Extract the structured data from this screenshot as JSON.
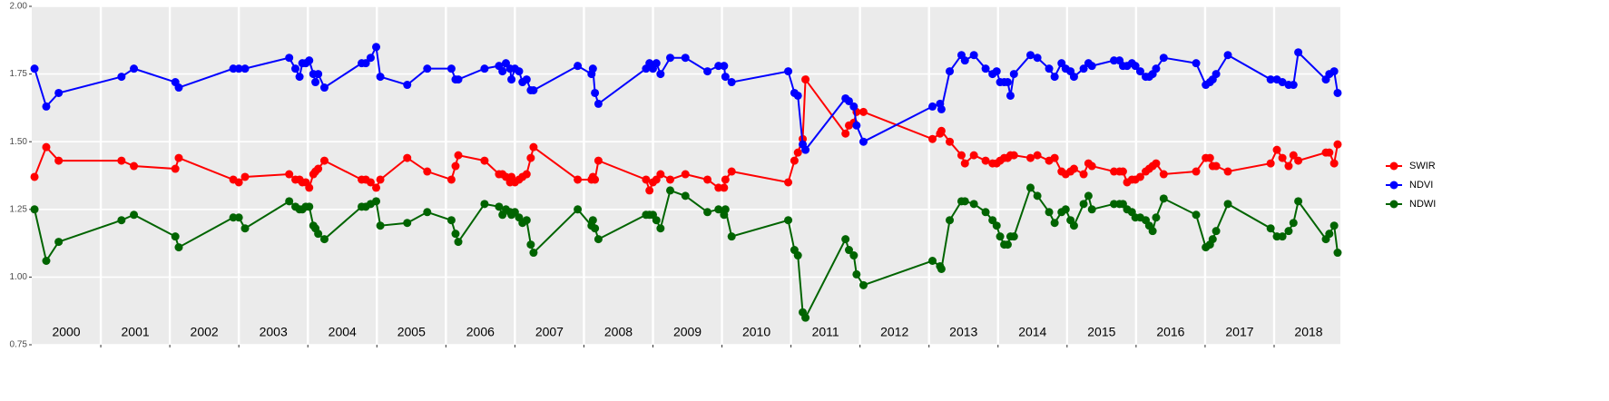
{
  "chart_data": {
    "type": "line",
    "x": [
      2000.04,
      2000.21,
      2000.39,
      2001.3,
      2001.48,
      2002.08,
      2002.13,
      2002.92,
      2003.0,
      2003.09,
      2003.73,
      2003.82,
      2003.88,
      2003.92,
      2003.97,
      2004.02,
      2004.08,
      2004.11,
      2004.15,
      2004.24,
      2004.78,
      2004.84,
      2004.91,
      2004.99,
      2005.05,
      2005.44,
      2005.73,
      2006.08,
      2006.14,
      2006.18,
      2006.56,
      2006.77,
      2006.82,
      2006.87,
      2006.93,
      2006.95,
      2007.0,
      2007.06,
      2007.11,
      2007.17,
      2007.23,
      2007.27,
      2007.91,
      2008.11,
      2008.13,
      2008.16,
      2008.21,
      2008.9,
      2008.95,
      2009.0,
      2009.05,
      2009.11,
      2009.25,
      2009.47,
      2009.79,
      2009.95,
      2010.03,
      2010.05,
      2010.14,
      2010.96,
      2011.05,
      2011.1,
      2011.17,
      2011.21,
      2011.79,
      2011.84,
      2011.91,
      2011.95,
      2012.05,
      2013.05,
      2013.16,
      2013.18,
      2013.3,
      2013.47,
      2013.52,
      2013.65,
      2013.82,
      2013.92,
      2013.98,
      2014.03,
      2014.09,
      2014.14,
      2014.18,
      2014.23,
      2014.47,
      2014.57,
      2014.74,
      2014.82,
      2014.92,
      2014.98,
      2015.05,
      2015.1,
      2015.24,
      2015.31,
      2015.36,
      2015.68,
      2015.76,
      2015.81,
      2015.87,
      2015.94,
      2015.99,
      2016.06,
      2016.14,
      2016.19,
      2016.24,
      2016.29,
      2016.4,
      2016.87,
      2017.01,
      2017.07,
      2017.11,
      2017.16,
      2017.33,
      2017.95,
      2018.04,
      2018.12,
      2018.21,
      2018.28,
      2018.35,
      2018.75,
      2018.8,
      2018.87,
      2018.92
    ],
    "series": [
      {
        "name": "SWIR",
        "color": "#ff0000",
        "values": [
          1.37,
          1.48,
          1.43,
          1.43,
          1.41,
          1.4,
          1.44,
          1.36,
          1.35,
          1.37,
          1.38,
          1.36,
          1.36,
          1.35,
          1.35,
          1.33,
          1.38,
          1.39,
          1.4,
          1.43,
          1.36,
          1.36,
          1.35,
          1.33,
          1.36,
          1.44,
          1.39,
          1.36,
          1.41,
          1.45,
          1.43,
          1.38,
          1.38,
          1.37,
          1.35,
          1.37,
          1.35,
          1.36,
          1.37,
          1.38,
          1.44,
          1.48,
          1.36,
          1.36,
          1.37,
          1.36,
          1.43,
          1.36,
          1.32,
          1.35,
          1.36,
          1.38,
          1.36,
          1.38,
          1.36,
          1.33,
          1.33,
          1.36,
          1.39,
          1.35,
          1.43,
          1.46,
          1.51,
          1.73,
          1.53,
          1.56,
          1.57,
          1.61,
          1.61,
          1.51,
          1.53,
          1.54,
          1.5,
          1.45,
          1.42,
          1.45,
          1.43,
          1.42,
          1.42,
          1.43,
          1.44,
          1.44,
          1.45,
          1.45,
          1.44,
          1.45,
          1.43,
          1.44,
          1.39,
          1.38,
          1.39,
          1.4,
          1.38,
          1.42,
          1.41,
          1.39,
          1.39,
          1.39,
          1.35,
          1.36,
          1.36,
          1.37,
          1.39,
          1.4,
          1.41,
          1.42,
          1.38,
          1.39,
          1.44,
          1.44,
          1.41,
          1.41,
          1.39,
          1.42,
          1.47,
          1.44,
          1.41,
          1.45,
          1.43,
          1.46,
          1.46,
          1.42,
          1.49
        ]
      },
      {
        "name": "NDVI",
        "color": "#0000ff",
        "values": [
          1.77,
          1.63,
          1.68,
          1.74,
          1.77,
          1.72,
          1.7,
          1.77,
          1.77,
          1.77,
          1.81,
          1.77,
          1.74,
          1.79,
          1.79,
          1.8,
          1.75,
          1.72,
          1.75,
          1.7,
          1.79,
          1.79,
          1.81,
          1.85,
          1.74,
          1.71,
          1.77,
          1.77,
          1.73,
          1.73,
          1.77,
          1.78,
          1.76,
          1.79,
          1.77,
          1.73,
          1.77,
          1.76,
          1.72,
          1.73,
          1.69,
          1.69,
          1.78,
          1.75,
          1.77,
          1.68,
          1.64,
          1.77,
          1.79,
          1.77,
          1.79,
          1.75,
          1.81,
          1.81,
          1.76,
          1.78,
          1.78,
          1.74,
          1.72,
          1.76,
          1.68,
          1.67,
          1.49,
          1.47,
          1.66,
          1.65,
          1.63,
          1.56,
          1.5,
          1.63,
          1.64,
          1.62,
          1.76,
          1.82,
          1.8,
          1.82,
          1.77,
          1.75,
          1.76,
          1.72,
          1.72,
          1.72,
          1.67,
          1.75,
          1.82,
          1.81,
          1.77,
          1.74,
          1.79,
          1.77,
          1.76,
          1.74,
          1.77,
          1.79,
          1.78,
          1.8,
          1.8,
          1.78,
          1.78,
          1.79,
          1.78,
          1.76,
          1.74,
          1.74,
          1.75,
          1.77,
          1.81,
          1.79,
          1.71,
          1.72,
          1.73,
          1.75,
          1.82,
          1.73,
          1.73,
          1.72,
          1.71,
          1.71,
          1.83,
          1.73,
          1.75,
          1.76,
          1.68
        ]
      },
      {
        "name": "NDWI",
        "color": "#006400",
        "values": [
          1.25,
          1.06,
          1.13,
          1.21,
          1.23,
          1.15,
          1.11,
          1.22,
          1.22,
          1.18,
          1.28,
          1.26,
          1.25,
          1.25,
          1.26,
          1.26,
          1.19,
          1.18,
          1.16,
          1.14,
          1.26,
          1.26,
          1.27,
          1.28,
          1.19,
          1.2,
          1.24,
          1.21,
          1.16,
          1.13,
          1.27,
          1.26,
          1.23,
          1.25,
          1.24,
          1.23,
          1.24,
          1.22,
          1.2,
          1.21,
          1.12,
          1.09,
          1.25,
          1.19,
          1.21,
          1.18,
          1.14,
          1.23,
          1.23,
          1.23,
          1.21,
          1.18,
          1.32,
          1.3,
          1.24,
          1.25,
          1.23,
          1.25,
          1.15,
          1.21,
          1.1,
          1.08,
          0.87,
          0.85,
          1.14,
          1.1,
          1.08,
          1.01,
          0.97,
          1.06,
          1.04,
          1.03,
          1.21,
          1.28,
          1.28,
          1.27,
          1.24,
          1.21,
          1.19,
          1.15,
          1.12,
          1.12,
          1.15,
          1.15,
          1.33,
          1.3,
          1.24,
          1.2,
          1.24,
          1.25,
          1.21,
          1.19,
          1.27,
          1.3,
          1.25,
          1.27,
          1.27,
          1.27,
          1.25,
          1.24,
          1.22,
          1.22,
          1.21,
          1.19,
          1.17,
          1.22,
          1.29,
          1.23,
          1.11,
          1.12,
          1.14,
          1.17,
          1.27,
          1.18,
          1.15,
          1.15,
          1.17,
          1.2,
          1.28,
          1.14,
          1.16,
          1.19,
          1.09
        ]
      }
    ],
    "xlim": [
      2000,
      2018.96
    ],
    "xticks": [
      {
        "value": 2000.5,
        "label": "2000"
      },
      {
        "value": 2001.5,
        "label": "2001"
      },
      {
        "value": 2002.5,
        "label": "2002"
      },
      {
        "value": 2003.5,
        "label": "2003"
      },
      {
        "value": 2004.5,
        "label": "2004"
      },
      {
        "value": 2005.5,
        "label": "2005"
      },
      {
        "value": 2006.5,
        "label": "2006"
      },
      {
        "value": 2007.5,
        "label": "2007"
      },
      {
        "value": 2008.5,
        "label": "2008"
      },
      {
        "value": 2009.5,
        "label": "2009"
      },
      {
        "value": 2010.5,
        "label": "2010"
      },
      {
        "value": 2011.5,
        "label": "2011"
      },
      {
        "value": 2012.5,
        "label": "2012"
      },
      {
        "value": 2013.5,
        "label": "2013"
      },
      {
        "value": 2014.5,
        "label": "2014"
      },
      {
        "value": 2015.5,
        "label": "2015"
      },
      {
        "value": 2016.5,
        "label": "2016"
      },
      {
        "value": 2017.5,
        "label": "2017"
      },
      {
        "value": 2018.5,
        "label": "2018"
      }
    ],
    "xgrid": [
      2001,
      2002,
      2003,
      2004,
      2005,
      2006,
      2007,
      2008,
      2009,
      2010,
      2011,
      2012,
      2013,
      2014,
      2015,
      2016,
      2017,
      2018
    ],
    "ylim": [
      0.75,
      2.0
    ],
    "yticks": [
      0.75,
      {
        "value": 1.0,
        "label": "1.00"
      },
      1.25,
      {
        "value": 1.5,
        "label": "1.50"
      },
      1.75,
      {
        "value": 2.0,
        "label": "2.00"
      }
    ],
    "grid": true,
    "legend": "right"
  }
}
